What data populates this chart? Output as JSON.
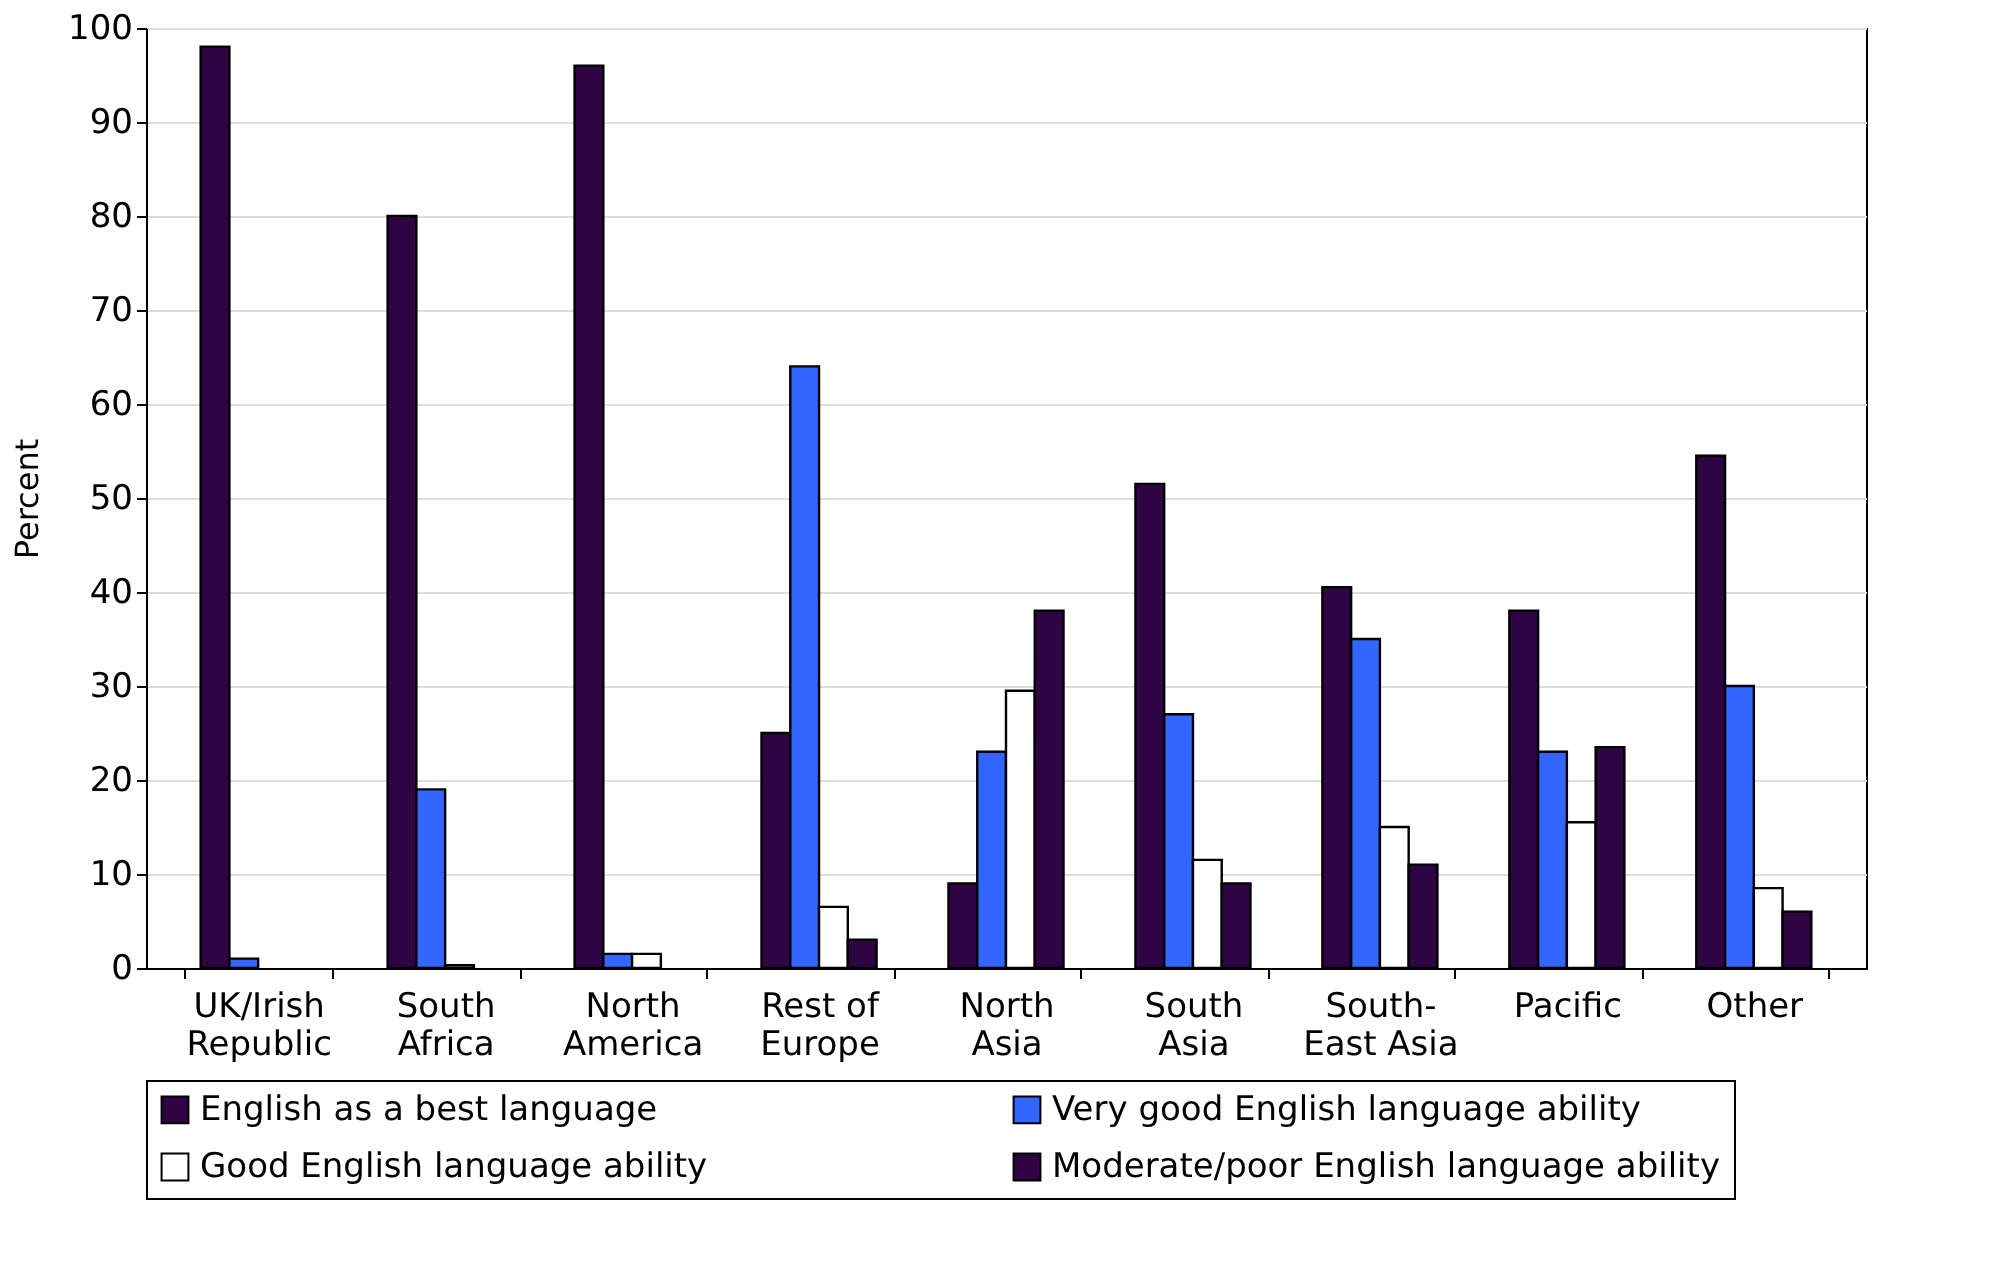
{
  "chart_data": {
    "type": "bar",
    "ylabel": "Percent",
    "categories": [
      "UK/Irish Republic",
      "South Africa",
      "North America",
      "Rest of Europe",
      "North Asia",
      "South Asia",
      "South-East Asia",
      "Pacific",
      "Other"
    ],
    "series": [
      {
        "name": "English as a best language",
        "color": "#2e0442",
        "values": [
          98,
          80,
          96,
          25,
          9,
          51.5,
          40.5,
          38,
          54.5
        ]
      },
      {
        "name": "Very good English language ability",
        "color": "#3366ff",
        "values": [
          1,
          19,
          1.5,
          64,
          23,
          27,
          35,
          23,
          30
        ]
      },
      {
        "name": "Good English language ability",
        "color": "#ffffff",
        "values": [
          null,
          0.3,
          1.5,
          6.5,
          29.5,
          11.5,
          15,
          15.5,
          8.5
        ]
      },
      {
        "name": "Moderate/poor English language ability",
        "color": "#2e0442",
        "values": [
          null,
          null,
          null,
          3,
          38,
          9,
          11,
          23.5,
          6
        ]
      }
    ],
    "ylim": [
      0,
      100
    ],
    "yticks": [
      0,
      10,
      20,
      30,
      40,
      50,
      60,
      70,
      80,
      90,
      100
    ],
    "grid": "y",
    "legend": "bottom"
  }
}
